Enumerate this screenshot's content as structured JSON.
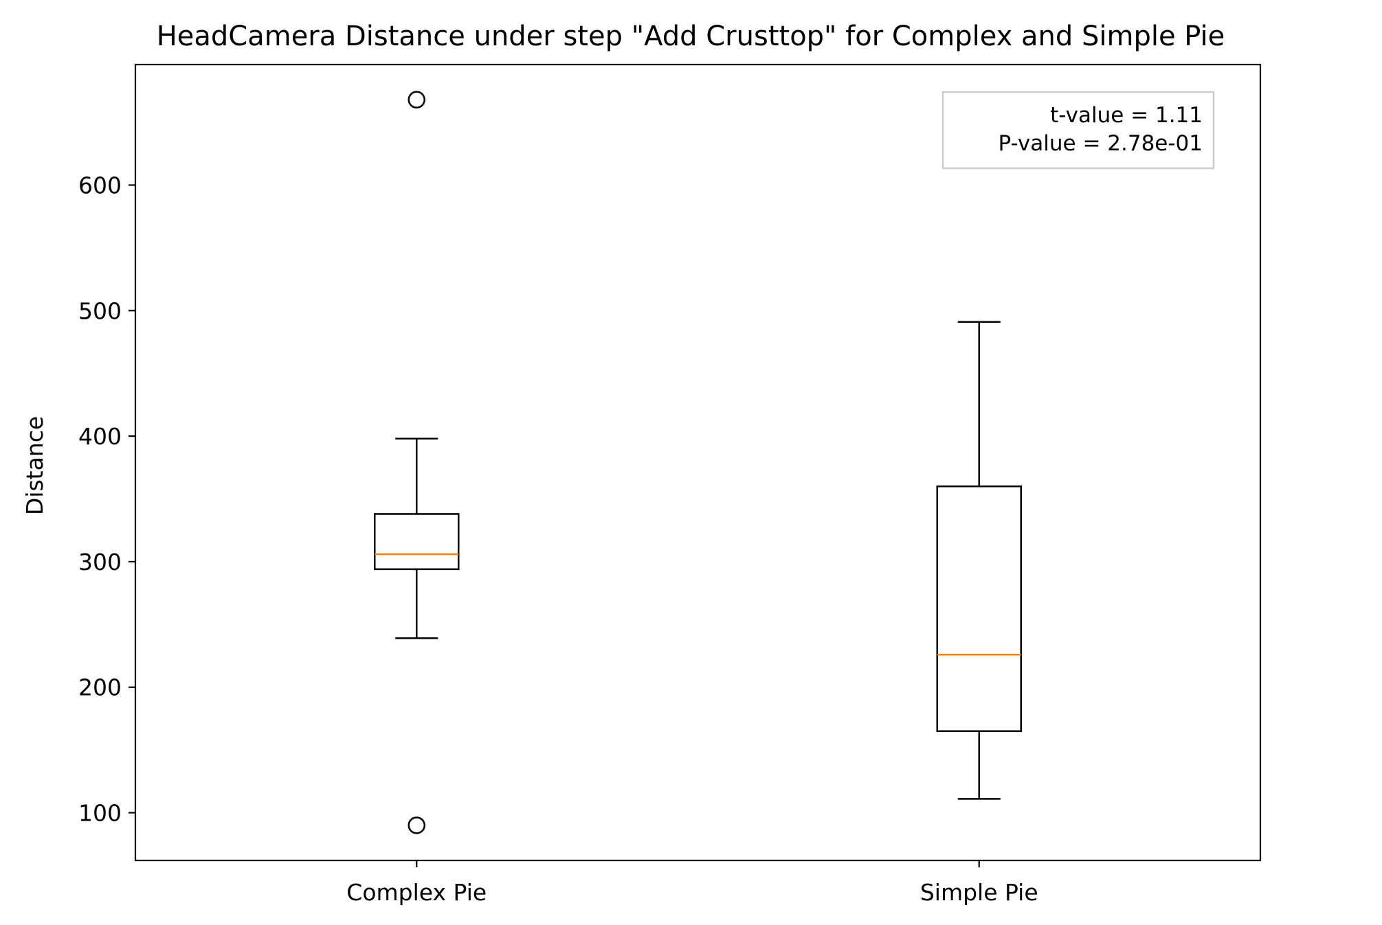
{
  "chart_data": {
    "type": "box",
    "title": "HeadCamera Distance under step \"Add Crusttop\" for Complex and Simple Pie",
    "xlabel": "",
    "ylabel": "Distance",
    "categories": [
      "Complex Pie",
      "Simple Pie"
    ],
    "ylim": [
      62,
      696
    ],
    "yticks": [
      100,
      200,
      300,
      400,
      500,
      600
    ],
    "ytick_labels": [
      "100",
      "200",
      "300",
      "400",
      "500",
      "600"
    ],
    "grid": false,
    "boxes": [
      {
        "category": "Complex Pie",
        "whisker_low": 239,
        "q1": 294,
        "median": 306,
        "q3": 338,
        "whisker_high": 398,
        "outliers": [
          90,
          668
        ]
      },
      {
        "category": "Simple Pie",
        "whisker_low": 111,
        "q1": 165,
        "median": 226,
        "q3": 360,
        "whisker_high": 491,
        "outliers": []
      }
    ],
    "annotation": {
      "lines": [
        "t-value = 1.11",
        "P-value = 2.78e-01"
      ],
      "placement": "top-right"
    },
    "colors": {
      "box": "#000000",
      "median": "#ff7f0e",
      "annotation_border": "#cccccc"
    }
  }
}
